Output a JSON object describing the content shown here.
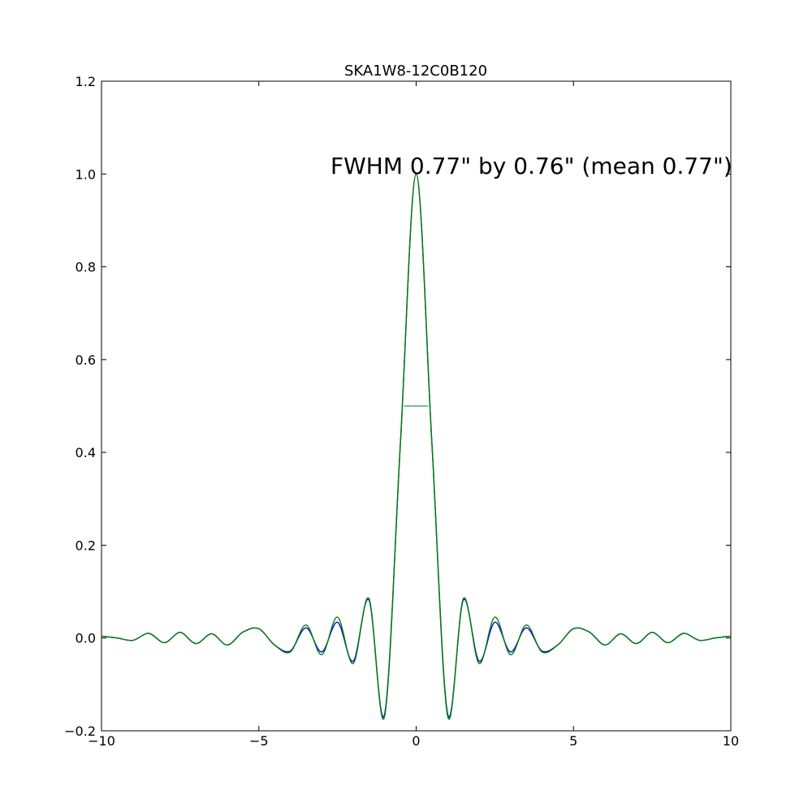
{
  "chart_data": {
    "type": "line",
    "title": "SKA1W8-12C0B120",
    "xlabel": "",
    "ylabel": "",
    "xlim": [
      -10,
      10
    ],
    "ylim": [
      -0.2,
      1.2
    ],
    "grid": false,
    "annotation": "FWHM 0.77\" by 0.76\" (mean 0.77\")",
    "x_ticks": [
      -10,
      -5,
      0,
      5,
      10
    ],
    "x_tick_labels": [
      "−10",
      "−5",
      "0",
      "5",
      "10"
    ],
    "y_ticks": [
      -0.2,
      0.0,
      0.2,
      0.4,
      0.6,
      0.8,
      1.0,
      1.2
    ],
    "y_tick_labels": [
      "−0.2",
      "0.0",
      "0.2",
      "0.4",
      "0.6",
      "0.8",
      "1.0",
      "1.2"
    ],
    "series": [
      {
        "color": "#0000ff",
        "x": [
          -10,
          -9.5,
          -9.0,
          -8.5,
          -8.0,
          -7.5,
          -7.0,
          -6.5,
          -6.0,
          -5.5,
          -5.0,
          -4.5,
          -4.0,
          -3.5,
          -3.0,
          -2.5,
          -2.0,
          -1.5,
          -1.0,
          -0.5,
          0,
          0.5,
          1.0,
          1.5,
          2.0,
          2.5,
          3.0,
          3.5,
          4.0,
          4.5,
          5.0,
          5.5,
          6.0,
          6.5,
          7.0,
          7.5,
          8.0,
          8.5,
          9.0,
          9.5,
          10
        ],
        "y": [
          0.004,
          0.0,
          -0.005,
          0.01,
          -0.01,
          0.012,
          -0.012,
          0.009,
          -0.015,
          0.013,
          0.02,
          -0.015,
          -0.028,
          0.022,
          -0.03,
          0.034,
          -0.05,
          0.082,
          -0.163,
          0.42,
          1.0,
          0.42,
          -0.163,
          0.082,
          -0.05,
          0.034,
          -0.03,
          0.022,
          -0.028,
          -0.015,
          0.02,
          0.013,
          -0.015,
          0.009,
          -0.012,
          0.012,
          -0.01,
          0.01,
          -0.005,
          0.0,
          0.004
        ]
      },
      {
        "color": "#007f00",
        "x": [
          -10,
          -9.5,
          -9.0,
          -8.5,
          -8.0,
          -7.5,
          -7.0,
          -6.5,
          -6.0,
          -5.5,
          -5.0,
          -4.5,
          -4.0,
          -3.5,
          -3.0,
          -2.5,
          -2.0,
          -1.5,
          -1.0,
          -0.5,
          0,
          0.5,
          1.0,
          1.5,
          2.0,
          2.5,
          3.0,
          3.5,
          4.0,
          4.5,
          5.0,
          5.5,
          6.0,
          6.5,
          7.0,
          7.5,
          8.0,
          8.5,
          9.0,
          9.5,
          10
        ],
        "y": [
          0.004,
          0.0,
          -0.005,
          0.01,
          -0.01,
          0.012,
          -0.012,
          0.009,
          -0.015,
          0.013,
          0.02,
          -0.015,
          -0.03,
          0.028,
          -0.036,
          0.045,
          -0.055,
          0.085,
          -0.168,
          0.42,
          1.0,
          0.42,
          -0.168,
          0.085,
          -0.055,
          0.045,
          -0.036,
          0.028,
          -0.03,
          -0.015,
          0.02,
          0.013,
          -0.015,
          0.009,
          -0.012,
          0.012,
          -0.01,
          0.01,
          -0.005,
          0.0,
          0.004
        ]
      }
    ],
    "fwhm_marker": {
      "x": [
        -0.385,
        0.385
      ],
      "y": 0.5,
      "color": "#3cb371"
    }
  }
}
